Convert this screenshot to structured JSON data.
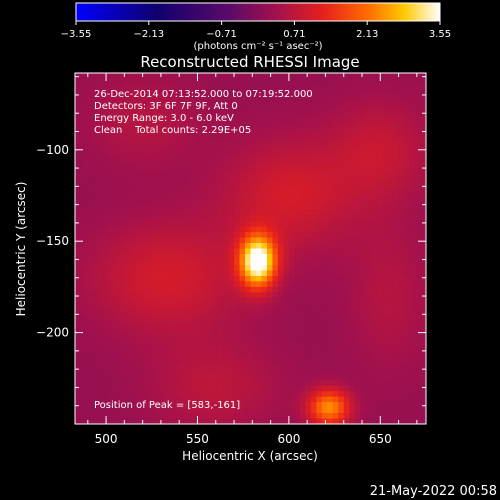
{
  "chart_data": {
    "type": "heatmap",
    "title": "Reconstructed RHESSI Image",
    "xlabel": "Heliocentric X (arcsec)",
    "ylabel": "Heliocentric Y (arcsec)",
    "xlim": [
      483,
      675
    ],
    "ylim": [
      -250,
      -58
    ],
    "x_ticks": [
      500,
      550,
      600,
      650
    ],
    "x_tick_labels": [
      "500",
      "550",
      "600",
      "650"
    ],
    "y_ticks": [
      -100,
      -150,
      -200
    ],
    "y_tick_labels": [
      "−100",
      "−150",
      "−200"
    ],
    "colorbar": {
      "range": [
        -3.55,
        3.55
      ],
      "ticks": [
        -3.55,
        -2.13,
        -0.71,
        0.71,
        2.13,
        3.55
      ],
      "tick_labels": [
        "−3.55",
        "−2.13",
        "−0.71",
        "0.71",
        "2.13",
        "3.55"
      ],
      "units_label": "(photons cm⁻² s⁻¹ asec⁻²)"
    },
    "annotations": {
      "time_range": "26-Dec-2014 07:13:52.000 to 07:19:52.000",
      "detectors": "Detectors: 3F 6F 7F 9F, Att 0",
      "energy_range": "Energy Range: 3.0 - 6.0 keV",
      "method": "Clean    Total counts: 2.29E+05",
      "peak_position": "Position of Peak = [583,-161]"
    },
    "footer_date": "21-May-2022 00:58",
    "sources": [
      {
        "x": 583,
        "y": -161,
        "peak": 3.55,
        "sx": 7,
        "sy": 10
      },
      {
        "x": 622,
        "y": -241,
        "peak": 2.2,
        "sx": 8,
        "sy": 7
      },
      {
        "x": 533,
        "y": -170,
        "peak": 0.8,
        "sx": 30,
        "sy": 22
      },
      {
        "x": 600,
        "y": -125,
        "peak": 0.8,
        "sx": 26,
        "sy": 22
      },
      {
        "x": 520,
        "y": -85,
        "peak": 0.4,
        "sx": 22,
        "sy": 18
      },
      {
        "x": 650,
        "y": -100,
        "peak": 0.6,
        "sx": 20,
        "sy": 20
      },
      {
        "x": 560,
        "y": -230,
        "peak": 0.5,
        "sx": 26,
        "sy": 18
      },
      {
        "x": 655,
        "y": -180,
        "peak": 0.4,
        "sx": 16,
        "sy": 30
      }
    ],
    "background": 0.2
  }
}
